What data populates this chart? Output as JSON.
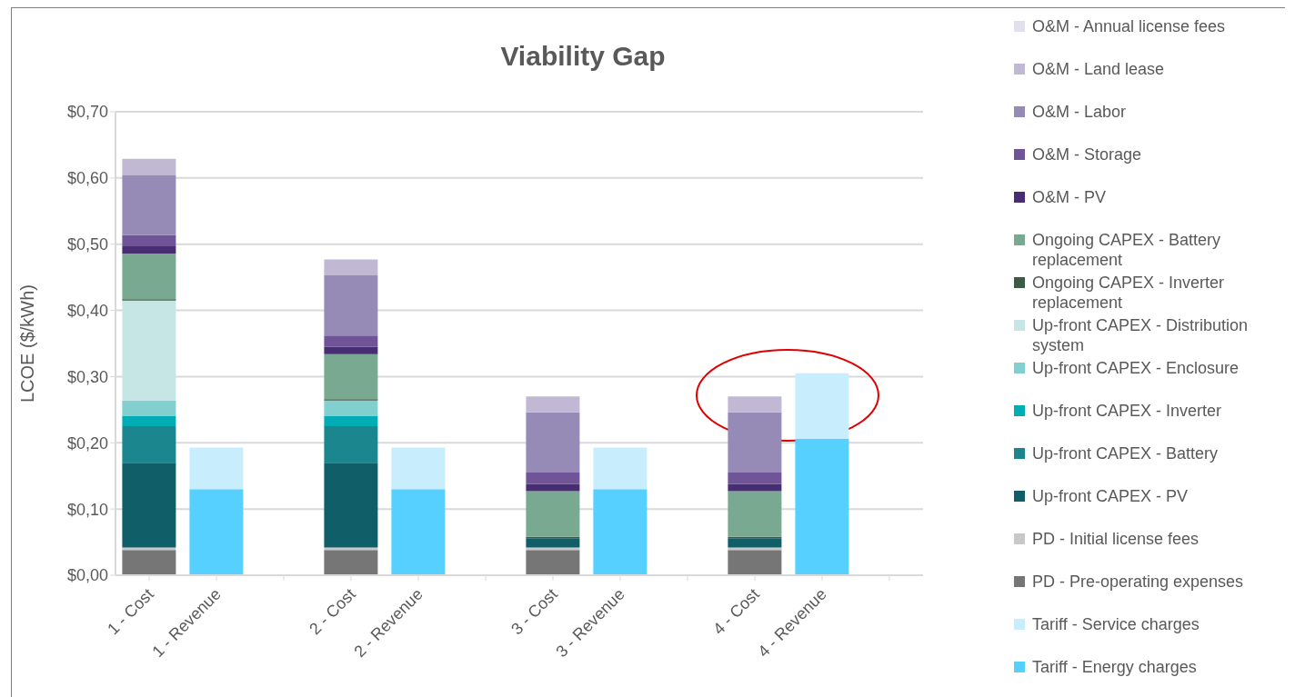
{
  "chart_data": {
    "type": "bar",
    "title": "Viability Gap",
    "ylabel": "LCOE ($/kWh)",
    "stacked": true,
    "grid": "y",
    "legend": "right",
    "categories": [
      "1 - Cost",
      "1 - Revenue",
      null,
      "2 - Cost",
      "2 - Revenue",
      null,
      "3 - Cost",
      "3 - Revenue",
      null,
      "4 - Cost",
      "4 - Revenue",
      null
    ],
    "ylim": [
      0,
      0.7
    ],
    "yticks": [
      {
        "value": 0,
        "label": "$0,00"
      },
      {
        "value": 0.1,
        "label": "$0,10"
      },
      {
        "value": 0.2,
        "label": "$0,20"
      },
      {
        "value": 0.3,
        "label": "$0,30"
      },
      {
        "value": 0.4,
        "label": "$0,40"
      },
      {
        "value": 0.5,
        "label": "$0,50"
      },
      {
        "value": 0.6,
        "label": "$0,60"
      },
      {
        "value": 0.7,
        "label": "$0,70"
      }
    ],
    "series": [
      {
        "name": "Tariff - Energy charges",
        "color": "#55d0ff",
        "values": [
          null,
          0.13,
          null,
          null,
          0.13,
          null,
          null,
          0.13,
          null,
          null,
          0.206,
          null
        ]
      },
      {
        "name": "Tariff - Service charges",
        "color": "#c8eefe",
        "values": [
          null,
          0.063,
          null,
          null,
          0.063,
          null,
          null,
          0.063,
          null,
          null,
          0.099,
          null
        ]
      },
      {
        "name": "PD - Pre-operating expenses",
        "color": "#767676",
        "values": [
          0.038,
          null,
          null,
          0.038,
          null,
          null,
          0.038,
          null,
          null,
          0.038,
          null,
          null
        ]
      },
      {
        "name": "PD - Initial license fees",
        "color": "#c8c8c8",
        "values": [
          0.004,
          null,
          null,
          0.004,
          null,
          null,
          0.004,
          null,
          null,
          0.004,
          null,
          null
        ]
      },
      {
        "name": "Up-front CAPEX - PV",
        "color": "#0f5e68",
        "values": [
          0.128,
          null,
          null,
          0.128,
          null,
          null,
          0.014,
          null,
          null,
          0.014,
          null,
          null
        ]
      },
      {
        "name": "Up-front CAPEX - Battery",
        "color": "#1b868e",
        "values": [
          0.055,
          null,
          null,
          0.055,
          null,
          null,
          0,
          null,
          null,
          0,
          null,
          null
        ]
      },
      {
        "name": "Up-front CAPEX - Inverter",
        "color": "#00adb5",
        "values": [
          0.016,
          null,
          null,
          0.016,
          null,
          null,
          0,
          null,
          null,
          0,
          null,
          null
        ]
      },
      {
        "name": "Up-front CAPEX - Enclosure",
        "color": "#82cfd0",
        "values": [
          0.023,
          null,
          null,
          0.023,
          null,
          null,
          0,
          null,
          null,
          0,
          null,
          null
        ]
      },
      {
        "name": "Up-front CAPEX - Distribution system",
        "color": "#c5e6e4",
        "values": [
          0.151,
          null,
          null,
          0,
          null,
          null,
          0,
          null,
          null,
          0,
          null,
          null
        ]
      },
      {
        "name": "Ongoing CAPEX - Inverter replacement",
        "color": "#3d5a47",
        "values": [
          0.002,
          null,
          null,
          0.002,
          null,
          null,
          0.002,
          null,
          null,
          0.002,
          null,
          null
        ]
      },
      {
        "name": "Ongoing CAPEX - Battery replacement",
        "color": "#7aa992",
        "values": [
          0.069,
          null,
          null,
          0.068,
          null,
          null,
          0.069,
          null,
          null,
          0.069,
          null,
          null
        ]
      },
      {
        "name": "O&M - PV",
        "color": "#472d72",
        "values": [
          0.011,
          null,
          null,
          0.011,
          null,
          null,
          0.011,
          null,
          null,
          0.011,
          null,
          null
        ]
      },
      {
        "name": "O&M - Storage",
        "color": "#6f5598",
        "values": [
          0.017,
          null,
          null,
          0.017,
          null,
          null,
          0.017,
          null,
          null,
          0.017,
          null,
          null
        ]
      },
      {
        "name": "O&M - Labor",
        "color": "#968bb6",
        "values": [
          0.09,
          null,
          null,
          0.091,
          null,
          null,
          0.091,
          null,
          null,
          0.091,
          null,
          null
        ]
      },
      {
        "name": "O&M - Land lease",
        "color": "#c1b8d4",
        "values": [
          0.025,
          null,
          null,
          0.024,
          null,
          null,
          0.024,
          null,
          null,
          0.024,
          null,
          null
        ]
      },
      {
        "name": "O&M - Annual license fees",
        "color": "#e3e0ee",
        "values": [
          0,
          null,
          null,
          0,
          null,
          null,
          0,
          null,
          null,
          0,
          null,
          null
        ]
      }
    ]
  }
}
